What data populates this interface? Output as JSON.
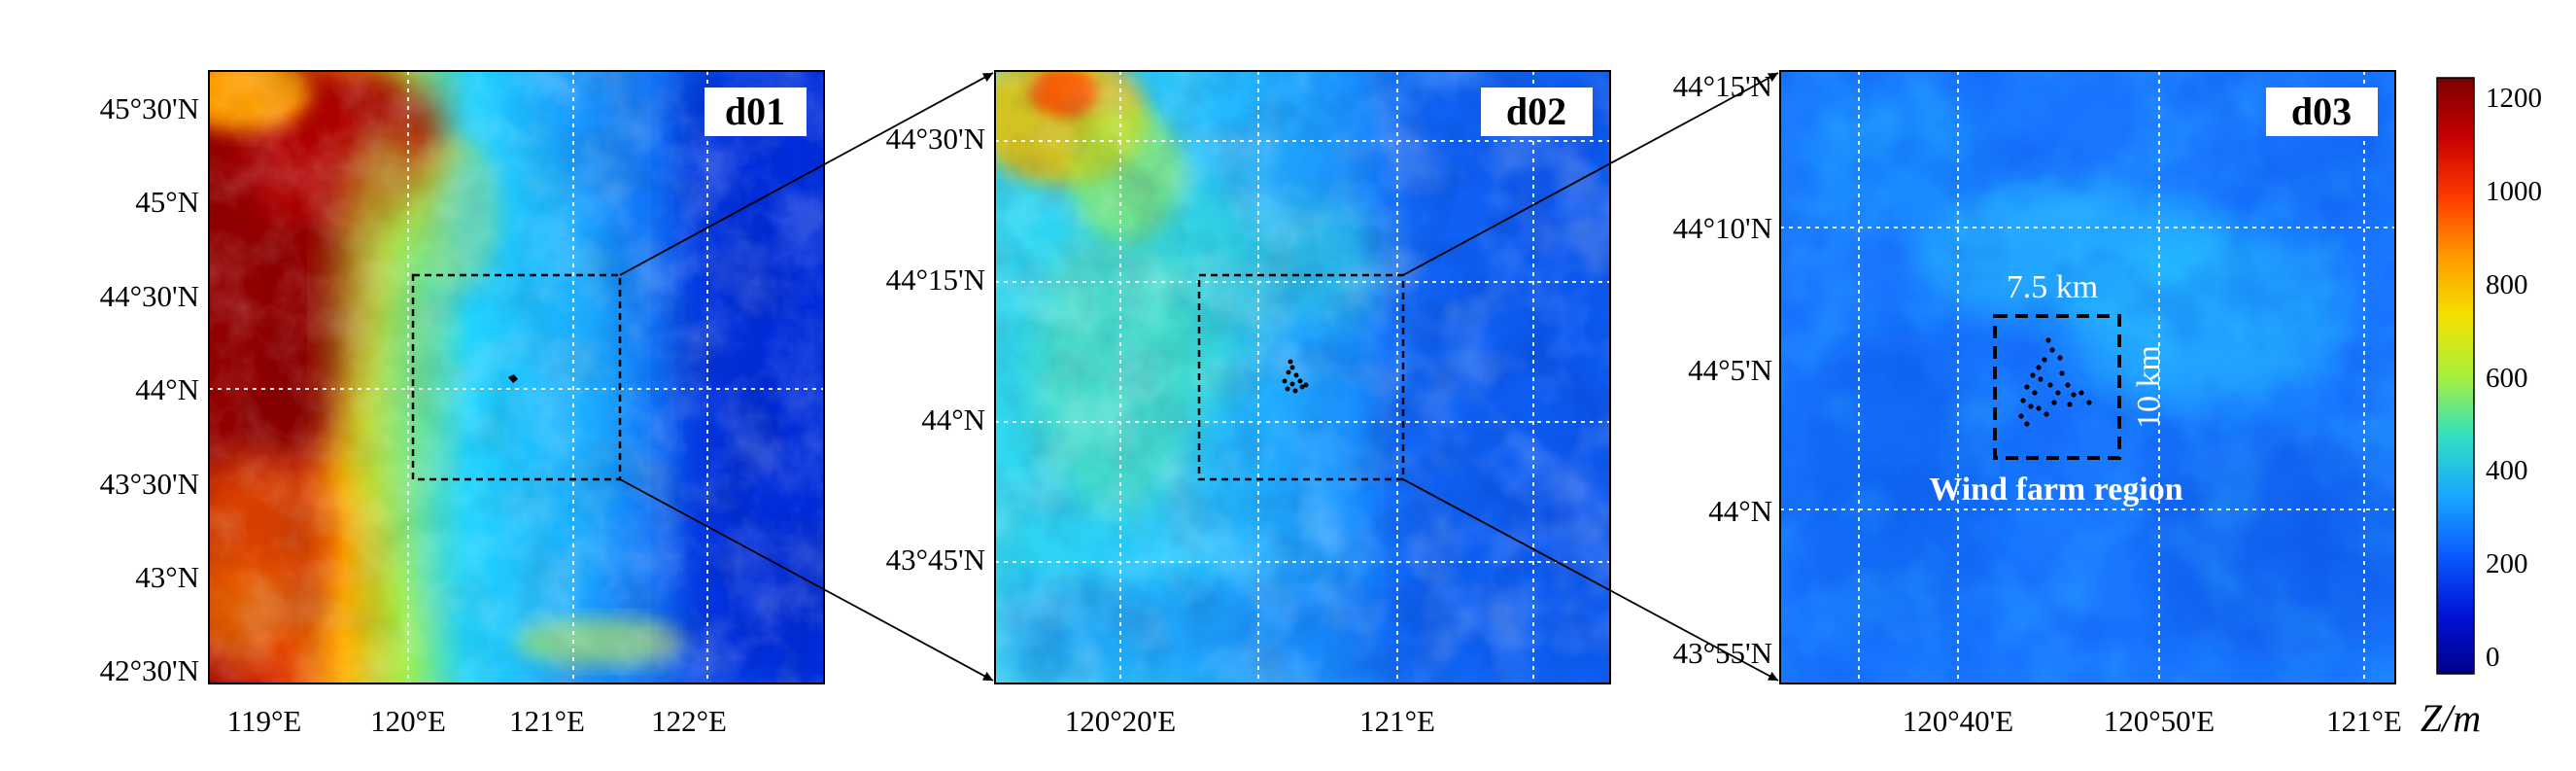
{
  "panels": [
    {
      "label": "d01",
      "lat_ticks": [
        "45°30'N",
        "45°N",
        "44°30'N",
        "44°N",
        "43°30'N",
        "43°N",
        "42°30'N"
      ],
      "lon_ticks": [
        "119°E",
        "120°E",
        "121°E",
        "122°E"
      ]
    },
    {
      "label": "d02",
      "lat_ticks": [
        "44°30'N",
        "44°15'N",
        "44°N",
        "43°45'N"
      ],
      "lon_ticks": [
        "120°20'E",
        "121°E"
      ]
    },
    {
      "label": "d03",
      "lat_ticks": [
        "44°15'N",
        "44°10'N",
        "44°5'N",
        "44°N",
        "43°55'N"
      ],
      "lon_ticks": [
        "120°40'E",
        "120°50'E",
        "121°E"
      ]
    }
  ],
  "annotations": {
    "width_label": "7.5 km",
    "height_label": "10 km",
    "region_label": "Wind farm region"
  },
  "colorbar": {
    "unit": "Z/m",
    "ticks": [
      "1200",
      "1000",
      "800",
      "600",
      "400",
      "200",
      "0"
    ],
    "colors": [
      "#7a0000",
      "#c80000",
      "#ff3a00",
      "#ff9a00",
      "#f5e000",
      "#a8f03a",
      "#32e0c0",
      "#1aa8ff",
      "#0a5cff",
      "#0014d8",
      "#00008c"
    ]
  },
  "colors": {
    "high_terrain": "#b40000",
    "mid_terrain": "#2ad0ff",
    "low_terrain": "#0a5cf0",
    "frame": "#000000"
  }
}
